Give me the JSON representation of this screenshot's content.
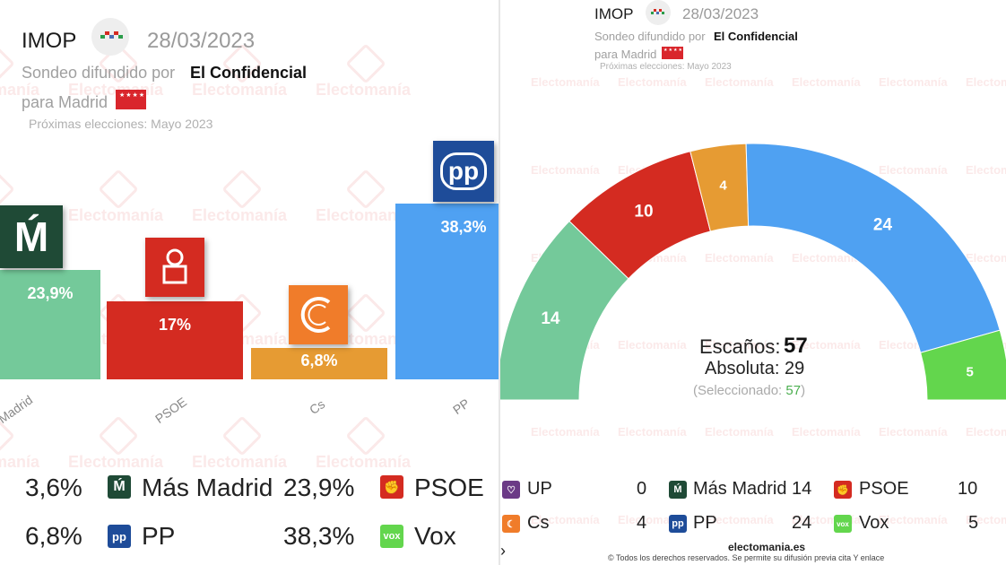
{
  "colors": {
    "mas_madrid": "#74c99a",
    "psoe": "#d42b21",
    "cs": "#e69b33",
    "pp": "#4fa1f2",
    "vox": "#63d64d",
    "up": "#6b3a86"
  },
  "watermark": "Electomanía",
  "left": {
    "pollster": "IMOP",
    "date": "28/03/2023",
    "subtitle_prefix": "Sondeo difundido por",
    "media": "El Confidencial",
    "region": "para Madrid",
    "next_elections": "Próximas elecciones: Mayo 2023",
    "legend": [
      {
        "value": "3,6%",
        "icon": "up-icon"
      },
      {
        "label": "Más Madrid",
        "value": "23,9%",
        "icon": "mas-madrid-icon"
      },
      {
        "label": "PSOE",
        "icon": "psoe-icon"
      },
      {
        "value": "6,8%",
        "icon": "cs-icon"
      },
      {
        "label": "PP",
        "value": "38,3%",
        "icon": "pp-icon"
      },
      {
        "label": "Vox",
        "icon": "vox-icon"
      }
    ]
  },
  "right": {
    "pollster": "IMOP",
    "date": "28/03/2023",
    "subtitle_prefix": "Sondeo difundido por",
    "media": "El Confidencial",
    "region": "para Madrid",
    "next_elections": "Próximas elecciones: Mayo 2023",
    "seats_label": "Escaños:",
    "seats_total": "57",
    "majority": "Absoluta: 29",
    "selected_prefix": "(Seleccionado:",
    "selected_value": "57",
    "selected_suffix": ")",
    "legend": [
      {
        "label": "UP",
        "value": "0",
        "icon": "up-icon"
      },
      {
        "label": "Más Madrid",
        "value": "14",
        "icon": "mas-madrid-icon"
      },
      {
        "label": "PSOE",
        "value": "10",
        "icon": "psoe-icon"
      },
      {
        "label": "Cs",
        "value": "4",
        "icon": "cs-icon"
      },
      {
        "label": "PP",
        "value": "24",
        "icon": "pp-icon"
      },
      {
        "label": "Vox",
        "value": "5",
        "icon": "vox-icon"
      }
    ],
    "footer_site": "electomania.es",
    "footer_rights": "© Todos los derechos reservados. Se permite su difusión previa cita Y enlace"
  },
  "chart_data": [
    {
      "type": "bar",
      "title": "IMOP 28/03/2023 — Madrid (vote %)",
      "categories": [
        "Más Madrid",
        "PSOE",
        "Cs",
        "PP"
      ],
      "axis_labels": [
        "Madrid",
        "PSOE",
        "Cs",
        "PP"
      ],
      "values": [
        23.9,
        17,
        6.8,
        38.3
      ],
      "value_labels": [
        "23,9%",
        "17%",
        "6,8%",
        "38,3%"
      ],
      "ylim": [
        0,
        40
      ]
    },
    {
      "type": "pie",
      "subtype": "hemicycle",
      "title": "Escaños",
      "categories": [
        "Más Madrid",
        "PSOE",
        "Cs",
        "PP",
        "Vox"
      ],
      "values": [
        14,
        10,
        4,
        24,
        5
      ],
      "total": 57,
      "majority": 29
    }
  ]
}
